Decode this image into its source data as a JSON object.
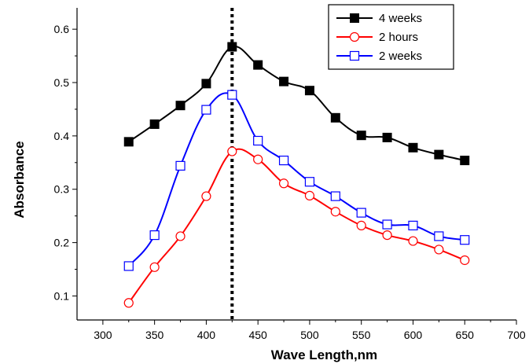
{
  "chart_data": {
    "type": "line",
    "title": "",
    "xlabel": "Wave Length,nm",
    "ylabel": "Absorbance",
    "xlim": [
      275,
      700
    ],
    "ylim": [
      0.055,
      0.64
    ],
    "x_ticks": [
      300,
      350,
      400,
      450,
      500,
      550,
      600,
      650,
      700
    ],
    "y_ticks": [
      0.1,
      0.2,
      0.3,
      0.4,
      0.5,
      0.6
    ],
    "grid": false,
    "legend_position": "top-right",
    "reference_line": {
      "x": 425,
      "style": "dotted"
    },
    "x": [
      325,
      350,
      375,
      400,
      425,
      450,
      475,
      500,
      525,
      550,
      575,
      600,
      625,
      650
    ],
    "series": [
      {
        "name": "4 weeks",
        "color": "#000000",
        "marker": "filled-square",
        "values": [
          0.389,
          0.422,
          0.457,
          0.498,
          0.567,
          0.533,
          0.502,
          0.485,
          0.434,
          0.401,
          0.397,
          0.378,
          0.365,
          0.354
        ]
      },
      {
        "name": "2 hours",
        "color": "#ff0000",
        "marker": "open-circle",
        "values": [
          0.087,
          0.154,
          0.212,
          0.287,
          0.371,
          0.356,
          0.311,
          0.288,
          0.258,
          0.232,
          0.214,
          0.203,
          0.187,
          0.167
        ]
      },
      {
        "name": "2 weeks",
        "color": "#0000ff",
        "marker": "open-square",
        "values": [
          0.156,
          0.214,
          0.344,
          0.449,
          0.477,
          0.391,
          0.354,
          0.314,
          0.287,
          0.256,
          0.234,
          0.232,
          0.212,
          0.205
        ]
      }
    ]
  }
}
